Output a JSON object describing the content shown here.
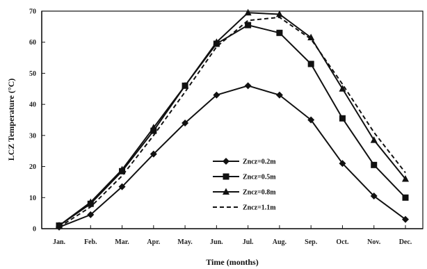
{
  "chart_data": {
    "type": "line",
    "title": "",
    "xlabel": "Time (months)",
    "ylabel": "LCZ Temperature (°C)",
    "categories": [
      "Jan.",
      "Feb.",
      "Mar.",
      "Apr.",
      "May.",
      "Jun.",
      "Jul.",
      "Aug.",
      "Sep.",
      "Oct.",
      "Nov.",
      "Dec."
    ],
    "ylim": [
      0,
      70
    ],
    "yticks": [
      0,
      10,
      20,
      30,
      40,
      50,
      60,
      70
    ],
    "grid": false,
    "legend_position": "center-right",
    "series": [
      {
        "name": "Zncz=0.2m",
        "marker": "diamond",
        "dash": "solid",
        "color": "#111111",
        "values": [
          0.5,
          4.5,
          13.5,
          24,
          34,
          43,
          46,
          43,
          35,
          21,
          10.5,
          3
        ]
      },
      {
        "name": "Zncz=0.5m",
        "marker": "square",
        "dash": "solid",
        "color": "#111111",
        "values": [
          1,
          8,
          18.5,
          31.5,
          46,
          59.5,
          65.5,
          63,
          53,
          35.5,
          20.5,
          10
        ]
      },
      {
        "name": "Zncz=0.8m",
        "marker": "triangle",
        "dash": "solid",
        "color": "#111111",
        "values": [
          1,
          8.5,
          19,
          32.5,
          46,
          60,
          69.5,
          69,
          61.5,
          45,
          28.5,
          16
        ]
      },
      {
        "name": "Zncz=1.1m",
        "marker": "none",
        "dash": "dashed",
        "color": "#111111",
        "values": [
          0.5,
          7,
          17,
          30,
          44,
          58.5,
          67,
          68,
          61,
          46.5,
          31,
          18
        ]
      }
    ]
  }
}
